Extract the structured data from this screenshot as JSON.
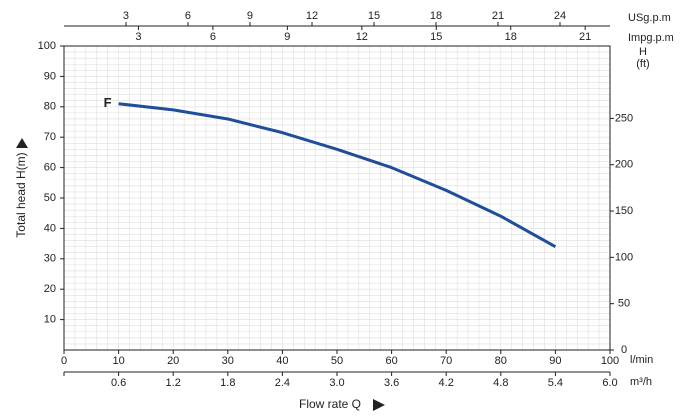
{
  "chart_data": {
    "type": "line",
    "x_unit": "l/min",
    "y_label": "Total  head H(m)",
    "x_label": "Flow rate Q",
    "xlim": [
      0,
      100
    ],
    "xticks": [
      0,
      10,
      20,
      30,
      40,
      50,
      60,
      70,
      80,
      90,
      100
    ],
    "ylim": [
      0,
      100
    ],
    "yticks": [
      10,
      20,
      30,
      40,
      50,
      60,
      70,
      80,
      90,
      100
    ],
    "y2_label": "H",
    "y2_unit": "(ft)",
    "y2lim": [
      0,
      328.1
    ],
    "y2ticks": [
      0,
      50,
      100,
      150,
      200,
      250
    ],
    "grid": true,
    "top_axes": [
      {
        "label": "USg.p.m",
        "lim": [
          0,
          26.42
        ],
        "ticks": [
          3,
          6,
          9,
          12,
          15,
          18,
          21,
          24
        ]
      },
      {
        "label": "Impg.p.m",
        "lim": [
          0,
          22.0
        ],
        "ticks": [
          3,
          6,
          9,
          12,
          15,
          18,
          21
        ]
      }
    ],
    "bottom_axis2": {
      "label": "m³/h",
      "lim": [
        0,
        6
      ],
      "ticks": [
        0.6,
        1.2,
        1.8,
        2.4,
        {
          "value": 3,
          "label": "3.0"
        },
        3.6,
        4.2,
        4.8,
        5.4,
        {
          "value": 6,
          "label": "6.0"
        }
      ]
    },
    "x": [
      10,
      20,
      30,
      40,
      50,
      60,
      70,
      80,
      90
    ],
    "series": [
      {
        "name": "F",
        "color": "#1f4e9a",
        "values": [
          81,
          79,
          76,
          71.5,
          66,
          60,
          52.5,
          44,
          34
        ]
      }
    ]
  }
}
